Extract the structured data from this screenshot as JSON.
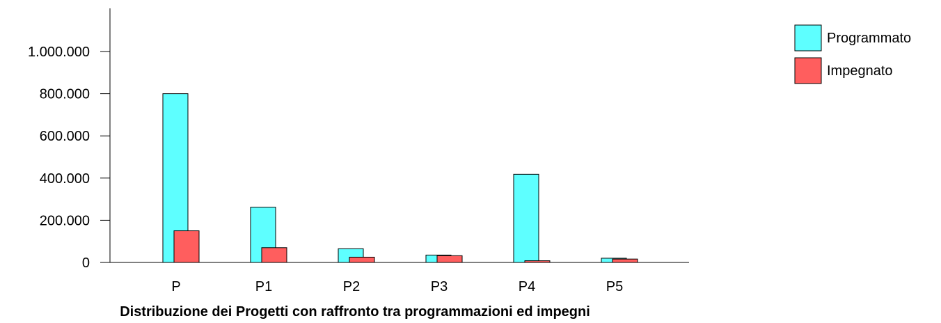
{
  "chart_data": {
    "type": "bar",
    "title": "Distribuzione dei Progetti con raffronto tra programmazioni ed impegni",
    "xlabel": "",
    "ylabel": "",
    "categories": [
      "P",
      "P1",
      "P2",
      "P3",
      "P4",
      "P5"
    ],
    "series": [
      {
        "name": "Programmato",
        "color": "#5effff",
        "values": [
          800000,
          262000,
          65000,
          35000,
          418000,
          20000
        ]
      },
      {
        "name": "Impegnato",
        "color": "#ff5e5e",
        "values": [
          150000,
          70000,
          25000,
          32000,
          8000,
          16000
        ]
      }
    ],
    "ylim": [
      0,
      1200000
    ],
    "yticks": [
      0,
      200000,
      400000,
      600000,
      800000,
      1000000
    ],
    "ytick_labels": [
      "0",
      "200.000",
      "400.000",
      "600.000",
      "800.000",
      "1.000.000"
    ],
    "legend_position": "top-right",
    "grid": false
  }
}
